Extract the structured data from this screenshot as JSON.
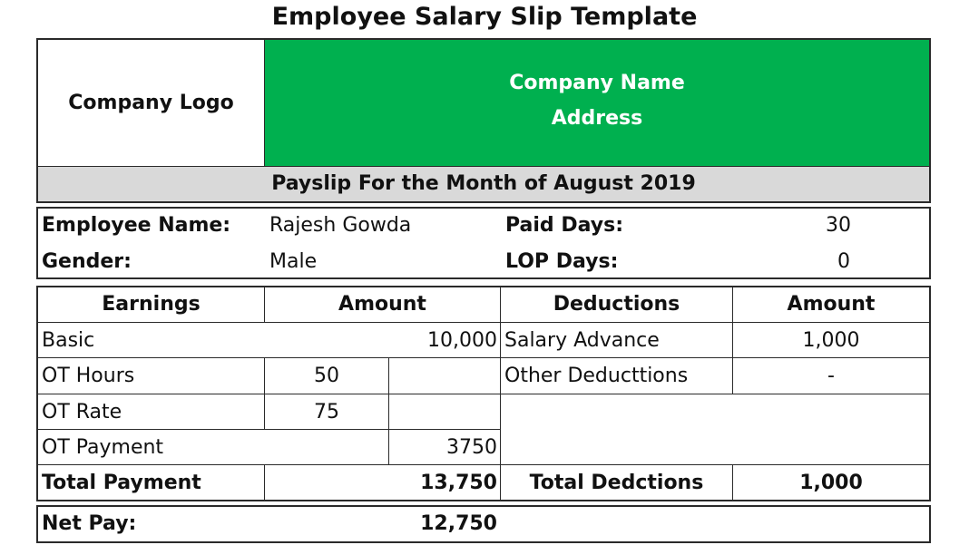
{
  "title": "Employee Salary Slip Template",
  "header": {
    "logo_label": "Company Logo",
    "company_name": "Company Name",
    "address": "Address",
    "brand_color": "#00b04f"
  },
  "payslip_month": "Payslip For the Month of August 2019",
  "employee": {
    "name_label": "Employee Name:",
    "name": "Rajesh Gowda",
    "gender_label": "Gender:",
    "gender": "Male",
    "paid_days_label": "Paid Days:",
    "paid_days": "30",
    "lop_days_label": "LOP Days:",
    "lop_days": "0"
  },
  "table": {
    "earnings_header": "Earnings",
    "earnings_amount_header": "Amount",
    "deductions_header": "Deductions",
    "deductions_amount_header": "Amount",
    "basic_label": "Basic",
    "basic_amount": "10,000",
    "ot_hours_label": "OT Hours",
    "ot_hours": "50",
    "ot_rate_label": "OT Rate",
    "ot_rate": "75",
    "ot_payment_label": "OT Payment",
    "ot_payment": "3750",
    "salary_advance_label": "Salary Advance",
    "salary_advance": "1,000",
    "other_deductions_label": "Other Deducttions",
    "other_deductions": "-",
    "total_payment_label": "Total Payment",
    "total_payment": "13,750",
    "total_deductions_label": "Total Dedctions",
    "total_deductions": "1,000"
  },
  "net_pay": {
    "label": "Net Pay:",
    "value": "12,750"
  }
}
